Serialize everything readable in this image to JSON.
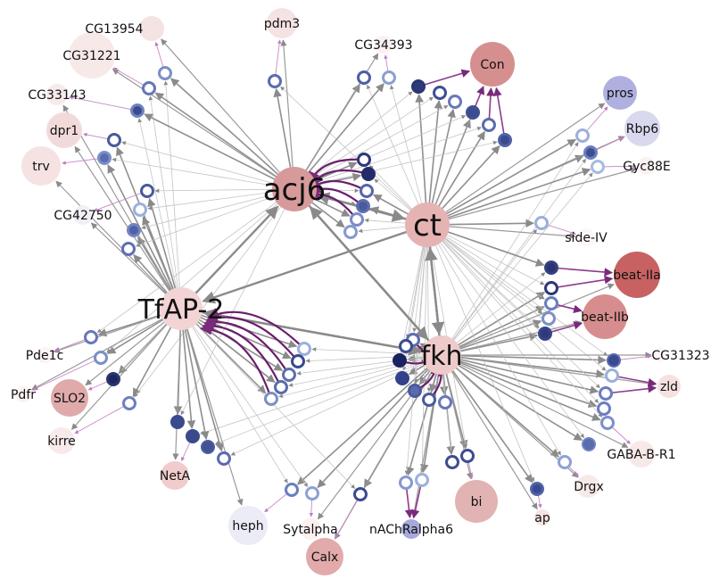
{
  "graph": {
    "hubs": [
      {
        "id": "acj6",
        "label": "acj6",
        "color": "#d79a9a"
      },
      {
        "id": "ct",
        "label": "ct",
        "color": "#e6b3b3"
      },
      {
        "id": "TfAP-2",
        "label": "TfAP-2",
        "color": "#f3d3d3"
      },
      {
        "id": "fkh",
        "label": "fkh",
        "color": "#eecaca"
      }
    ],
    "genes": [
      {
        "id": "CG13954",
        "label": "CG13954",
        "color": "#f5e2e2"
      },
      {
        "id": "pdm3",
        "label": "pdm3",
        "color": "#f5e2e2"
      },
      {
        "id": "CG34393",
        "label": "CG34393",
        "color": "#fbf1f1"
      },
      {
        "id": "Con",
        "label": "Con",
        "color": "#d58f8f"
      },
      {
        "id": "CG31221",
        "label": "CG31221",
        "color": "#f8e9e9"
      },
      {
        "id": "CG33143",
        "label": "CG33143",
        "color": "#f8eaea"
      },
      {
        "id": "dpr1",
        "label": "dpr1",
        "color": "#f3dada"
      },
      {
        "id": "trv",
        "label": "trv",
        "color": "#f6e2e2"
      },
      {
        "id": "pros",
        "label": "pros",
        "color": "#b0b0e0"
      },
      {
        "id": "Rbp6",
        "label": "Rbp6",
        "color": "#d8d8ee"
      },
      {
        "id": "Gyc88E",
        "label": "Gyc88E",
        "color": "#fbf1f1"
      },
      {
        "id": "CG42750",
        "label": "CG42750",
        "color": "#f0f0f6"
      },
      {
        "id": "side-IV",
        "label": "side-IV",
        "color": "#fdf6f6"
      },
      {
        "id": "beat-IIa",
        "label": "beat-IIa",
        "color": "#c86262"
      },
      {
        "id": "beat-IIb",
        "label": "beat-IIb",
        "color": "#d78d8d"
      },
      {
        "id": "Pde1c",
        "label": "Pde1c",
        "color": "#fcf3f3"
      },
      {
        "id": "Pdfr",
        "label": "Pdfr",
        "color": "#fcf3f3"
      },
      {
        "id": "SLO2",
        "label": "SLO2",
        "color": "#e0aaaa"
      },
      {
        "id": "kirre",
        "label": "kirre",
        "color": "#f8eaea"
      },
      {
        "id": "CG31323",
        "label": "CG31323",
        "color": "#fdf6f6"
      },
      {
        "id": "zld",
        "label": "zld",
        "color": "#f6e1e1"
      },
      {
        "id": "GABA-B-R1",
        "label": "GABA-B-R1",
        "color": "#f8e9e9"
      },
      {
        "id": "Drgx",
        "label": "Drgx",
        "color": "#f8e9e9"
      },
      {
        "id": "NetA",
        "label": "NetA",
        "color": "#f0cccc"
      },
      {
        "id": "heph",
        "label": "heph",
        "color": "#ececf7"
      },
      {
        "id": "Sytalpha",
        "label": "Sytalpha",
        "color": "#fbefef"
      },
      {
        "id": "nAChRalpha6",
        "label": "nAChRalpha6",
        "color": "#a8a8dc"
      },
      {
        "id": "Calx",
        "label": "Calx",
        "color": "#e2aaaa"
      },
      {
        "id": "bi",
        "label": "bi",
        "color": "#e2b3b3"
      },
      {
        "id": "ap",
        "label": "ap",
        "color": "#f6e3e3"
      }
    ]
  }
}
